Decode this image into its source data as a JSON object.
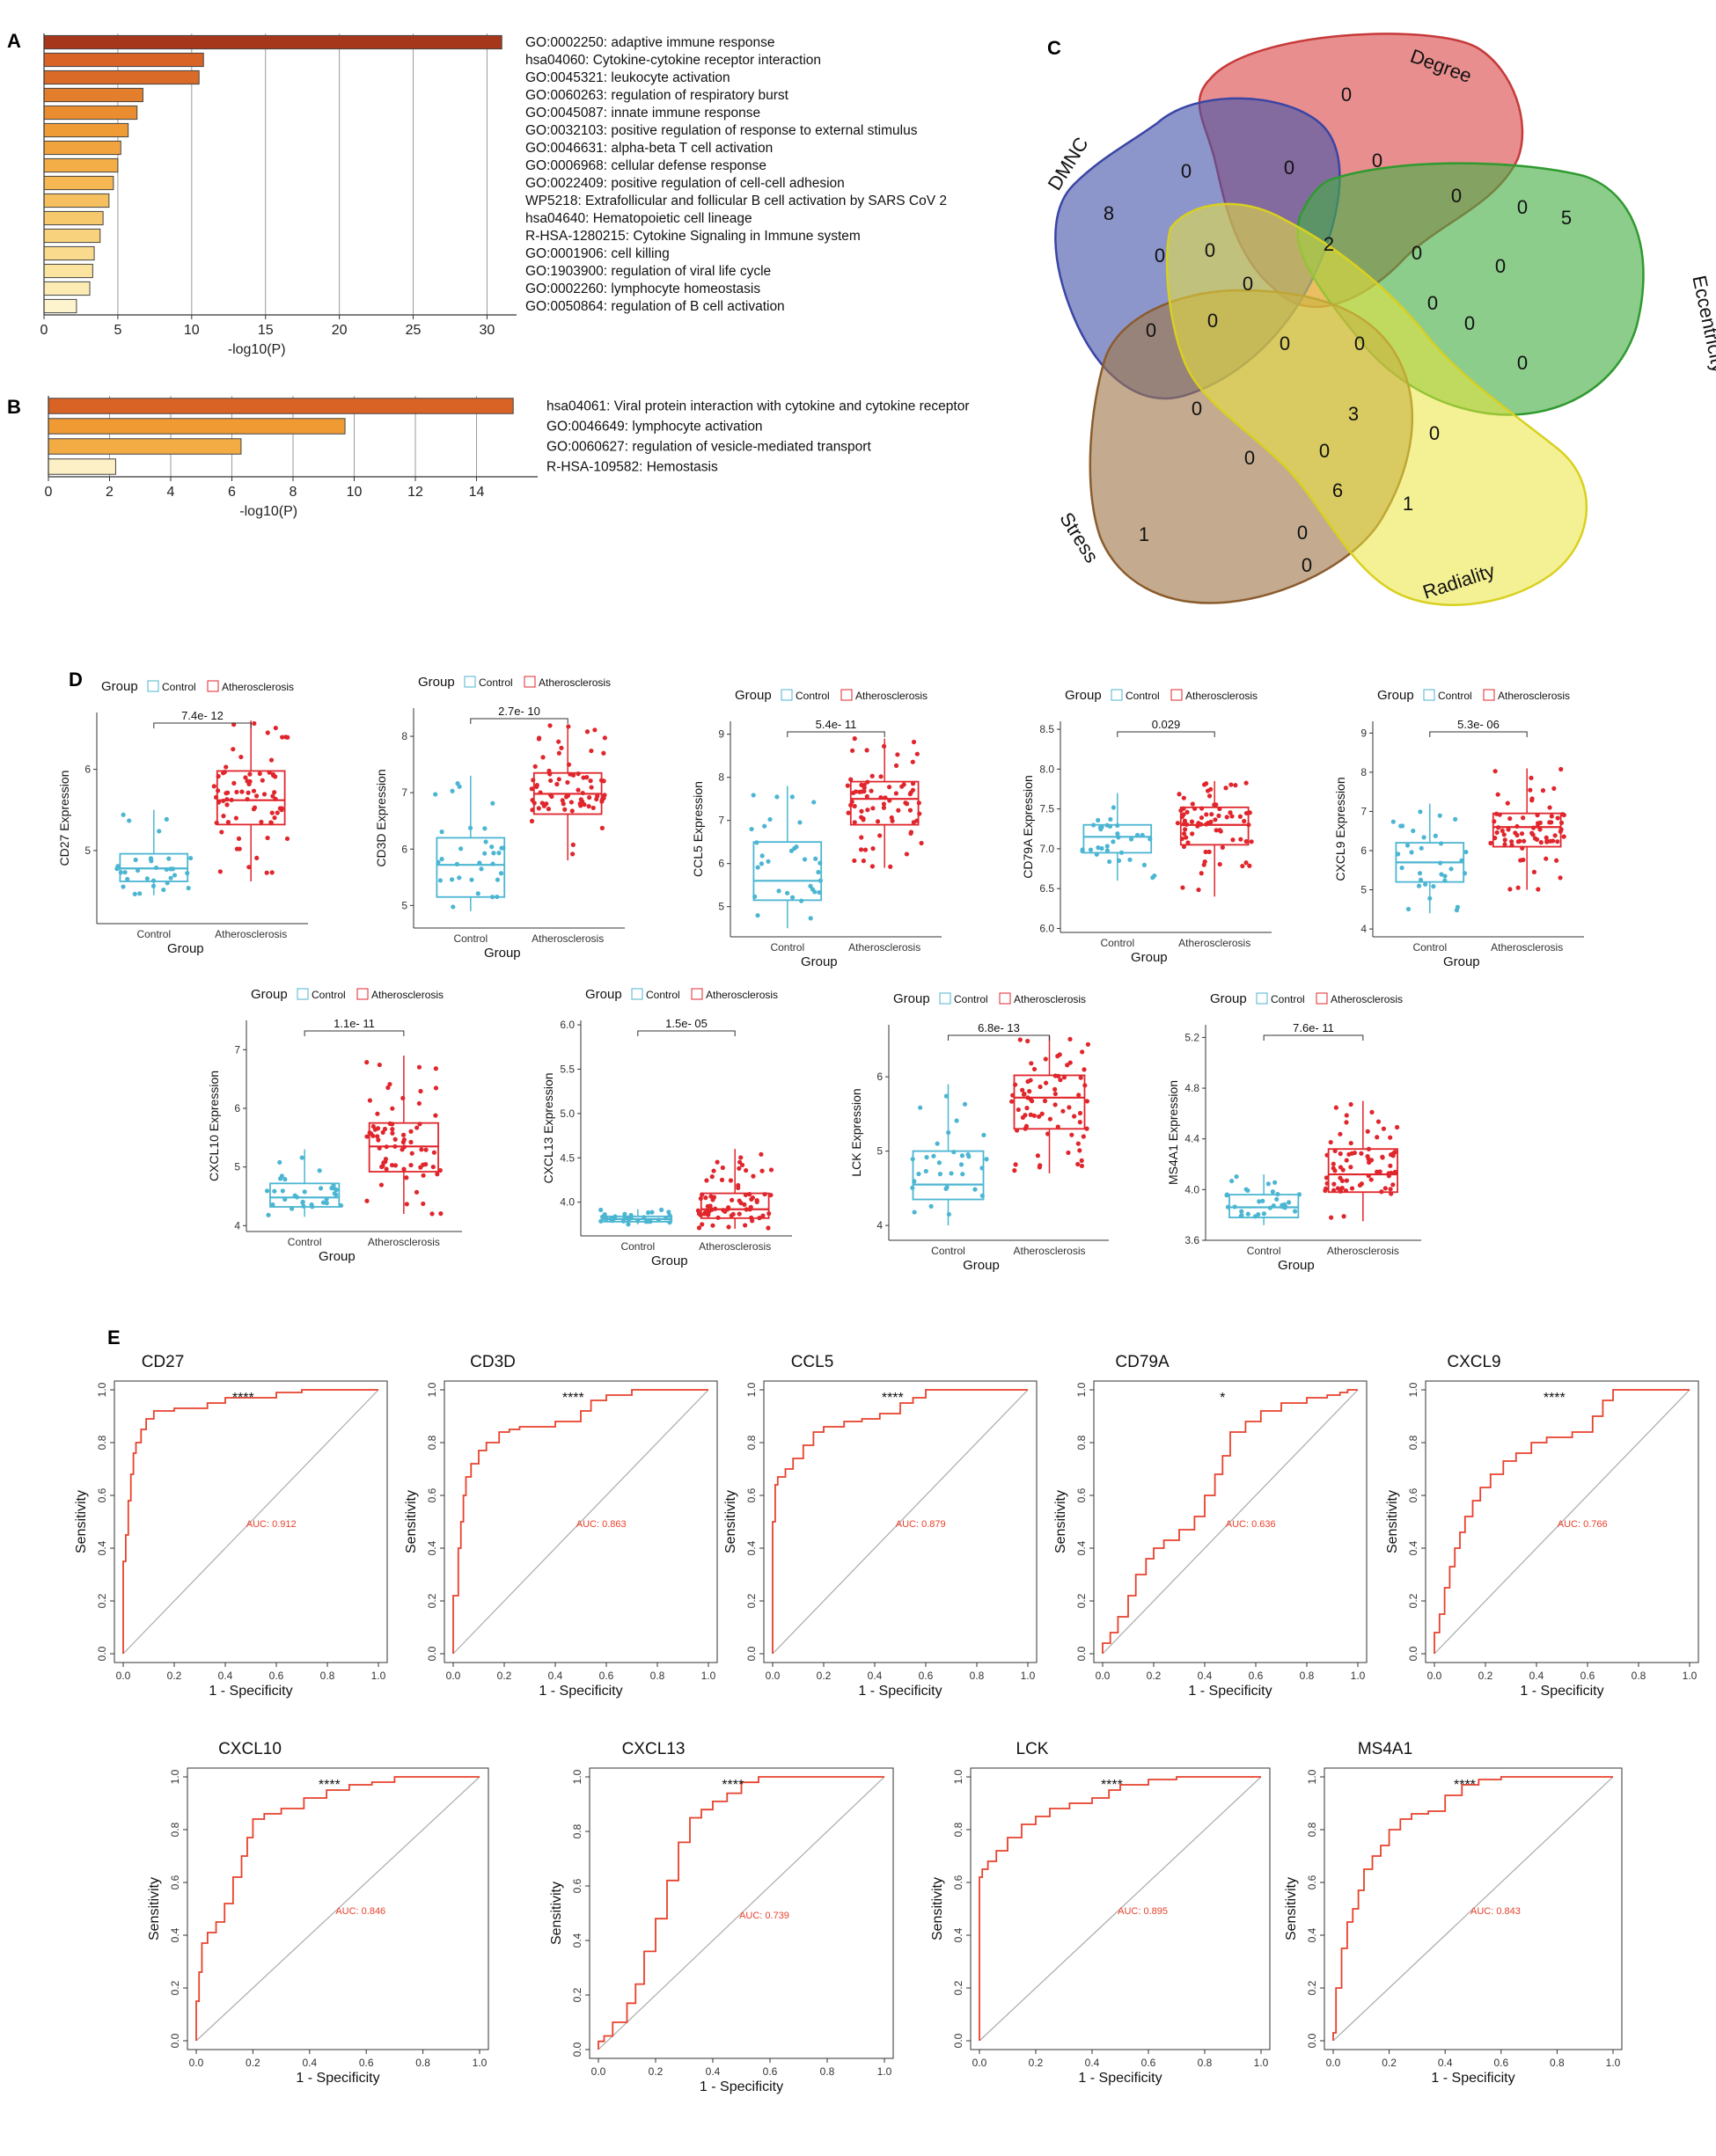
{
  "panel_letters": {
    "a": "A",
    "b": "B",
    "c": "C",
    "d": "D",
    "e": "E"
  },
  "chart_data": [
    {
      "id": "A",
      "type": "bar",
      "orientation": "horizontal",
      "xlabel": "-log10(P)",
      "xlim": [
        0,
        32
      ],
      "xticks": [
        0,
        5,
        10,
        15,
        20,
        25,
        30
      ],
      "xtick_labels": [
        "0",
        "5",
        "10",
        "15",
        "20",
        "25",
        "30"
      ],
      "grid": true,
      "categories": [
        "GO:0002250: adaptive immune response",
        "hsa04060: Cytokine-cytokine receptor interaction",
        "GO:0045321: leukocyte activation",
        "GO:0060263: regulation of respiratory burst",
        "GO:0045087: innate immune response",
        "GO:0032103: positive regulation of response to external stimulus",
        "GO:0046631: alpha-beta T cell activation",
        "GO:0006968: cellular defense response",
        "GO:0022409: positive regulation of cell-cell adhesion",
        "WP5218: Extrafollicular and follicular B cell activation by SARS CoV 2",
        "hsa04640: Hematopoietic cell lineage",
        "R-HSA-1280215: Cytokine Signaling in Immune system",
        "GO:0001906: cell killing",
        "GO:1903900: regulation of viral life cycle",
        "GO:0002260: lymphocyte homeostasis",
        "GO:0050864: regulation of B cell activation"
      ],
      "values": [
        31.0,
        10.8,
        10.5,
        6.7,
        6.3,
        5.7,
        5.2,
        5.0,
        4.7,
        4.4,
        4.0,
        3.8,
        3.4,
        3.3,
        3.1,
        2.2
      ],
      "colors": [
        "#a7371a",
        "#d86325",
        "#d96a28",
        "#e37f2c",
        "#ea8d31",
        "#ef9c37",
        "#f1a43e",
        "#f3ae47",
        "#f4b753",
        "#f6c060",
        "#f7c96d",
        "#f8d27c",
        "#fadb8d",
        "#fbe3a0",
        "#fcecb4",
        "#fdf3cc"
      ]
    },
    {
      "id": "B",
      "type": "bar",
      "orientation": "horizontal",
      "xlabel": "-log10(P)",
      "xlim": [
        0,
        16
      ],
      "xticks": [
        0,
        2,
        4,
        6,
        8,
        10,
        12,
        14
      ],
      "xtick_labels": [
        "0",
        "2",
        "4",
        "6",
        "8",
        "10",
        "12",
        "14"
      ],
      "grid": true,
      "categories": [
        "hsa04061: Viral protein interaction with cytokine and cytokine receptor",
        "GO:0046649: lymphocyte activation",
        "GO:0060627: regulation of vesicle-mediated transport",
        "R-HSA-109582: Hemostasis"
      ],
      "values": [
        15.2,
        9.7,
        6.3,
        2.2
      ],
      "colors": [
        "#d86325",
        "#f09a33",
        "#f3ac44",
        "#fdf0c6"
      ]
    },
    {
      "id": "C",
      "type": "venn",
      "sets": [
        "Degree",
        "DMNC",
        "Eccentricity",
        "Stress",
        "Radiality"
      ],
      "region_counts": [
        0,
        8,
        5,
        1,
        0,
        0,
        0,
        0,
        0,
        0,
        0,
        0,
        0,
        2,
        0,
        0,
        0,
        0,
        0,
        0,
        0,
        0,
        0,
        3,
        0,
        0,
        0,
        0,
        6,
        1,
        0
      ]
    },
    {
      "id": "D",
      "type": "box",
      "legend_title": "Group",
      "legend_entries": [
        "Control",
        "Atherosclerosis"
      ],
      "categories": [
        "Control",
        "Atherosclerosis"
      ],
      "xlabel": "Group",
      "series_colors": {
        "control": "#4cb6d2",
        "athero": "#e0262c"
      },
      "plots": [
        {
          "gene": "CD27",
          "ylabel": "CD27 Expression",
          "ylim": [
            4.1,
            6.7
          ],
          "yticks": [
            5,
            6
          ],
          "ytick_labels": [
            "5",
            "6"
          ],
          "p_value": "7.4e- 12",
          "control": {
            "min": 4.45,
            "q1": 4.62,
            "median": 4.78,
            "q3": 4.96,
            "max": 5.5
          },
          "athero": {
            "min": 4.62,
            "q1": 5.32,
            "median": 5.62,
            "q3": 5.98,
            "max": 6.6
          }
        },
        {
          "gene": "CD3D",
          "ylabel": "CD3D Expression",
          "ylim": [
            4.6,
            8.5
          ],
          "yticks": [
            5,
            6,
            7,
            8
          ],
          "ytick_labels": [
            "5",
            "6",
            "7",
            "8"
          ],
          "p_value": "2.7e- 10",
          "control": {
            "min": 4.9,
            "q1": 5.15,
            "median": 5.72,
            "q3": 6.2,
            "max": 7.3
          },
          "athero": {
            "min": 5.8,
            "q1": 6.62,
            "median": 6.98,
            "q3": 7.35,
            "max": 8.2
          }
        },
        {
          "gene": "CCL5",
          "ylabel": "CCL5 Expression",
          "ylim": [
            4.3,
            9.3
          ],
          "yticks": [
            5,
            6,
            7,
            8,
            9
          ],
          "ytick_labels": [
            "5",
            "6",
            "7",
            "8",
            "9"
          ],
          "p_value": "5.4e- 11",
          "control": {
            "min": 4.5,
            "q1": 5.15,
            "median": 5.6,
            "q3": 6.5,
            "max": 7.8
          },
          "athero": {
            "min": 5.9,
            "q1": 6.9,
            "median": 7.5,
            "q3": 7.9,
            "max": 8.9
          }
        },
        {
          "gene": "CD79A",
          "ylabel": "CD79A Expression",
          "ylim": [
            5.95,
            8.6
          ],
          "yticks": [
            6.0,
            6.5,
            7.0,
            7.5,
            8.0,
            8.5
          ],
          "ytick_labels": [
            "6.0",
            "6.5",
            "7.0",
            "7.5",
            "8.0",
            "8.5"
          ],
          "p_value": "0.029",
          "control": {
            "min": 6.6,
            "q1": 6.95,
            "median": 7.15,
            "q3": 7.3,
            "max": 7.7
          },
          "athero": {
            "min": 6.4,
            "q1": 7.05,
            "median": 7.3,
            "q3": 7.52,
            "max": 7.85
          }
        },
        {
          "gene": "CXCL9",
          "ylabel": "CXCL9 Expression",
          "ylim": [
            3.8,
            9.3
          ],
          "yticks": [
            4,
            5,
            6,
            7,
            8,
            9
          ],
          "ytick_labels": [
            "4",
            "5",
            "6",
            "7",
            "8",
            "9"
          ],
          "p_value": "5.3e- 06",
          "control": {
            "min": 4.4,
            "q1": 5.2,
            "median": 5.7,
            "q3": 6.2,
            "max": 7.2
          },
          "athero": {
            "min": 5.0,
            "q1": 6.1,
            "median": 6.6,
            "q3": 6.95,
            "max": 8.1
          }
        },
        {
          "gene": "CXCL10",
          "ylabel": "CXCL10 Expression",
          "ylim": [
            3.9,
            7.5
          ],
          "yticks": [
            4,
            5,
            6,
            7
          ],
          "ytick_labels": [
            "4",
            "5",
            "6",
            "7"
          ],
          "p_value": "1.1e- 11",
          "control": {
            "min": 4.15,
            "q1": 4.32,
            "median": 4.48,
            "q3": 4.72,
            "max": 5.3
          },
          "athero": {
            "min": 4.2,
            "q1": 4.92,
            "median": 5.35,
            "q3": 5.75,
            "max": 6.9
          }
        },
        {
          "gene": "CXCL13",
          "ylabel": "CXCL13 Expression",
          "ylim": [
            3.62,
            6.05
          ],
          "yticks": [
            4.0,
            4.5,
            5.0,
            5.5,
            6.0
          ],
          "ytick_labels": [
            "4.0",
            "4.5",
            "5.0",
            "5.5",
            "6.0"
          ],
          "p_value": "1.5e- 05",
          "control": {
            "min": 3.75,
            "q1": 3.78,
            "median": 3.81,
            "q3": 3.84,
            "max": 3.92
          },
          "athero": {
            "min": 3.7,
            "q1": 3.82,
            "median": 3.92,
            "q3": 4.1,
            "max": 4.6
          }
        },
        {
          "gene": "LCK",
          "ylabel": "LCK Expression",
          "ylim": [
            3.8,
            6.7
          ],
          "yticks": [
            4,
            5,
            6
          ],
          "ytick_labels": [
            "4",
            "5",
            "6"
          ],
          "p_value": "6.8e- 13",
          "control": {
            "min": 4.0,
            "q1": 4.35,
            "median": 4.55,
            "q3": 5.0,
            "max": 5.9
          },
          "athero": {
            "min": 4.7,
            "q1": 5.3,
            "median": 5.72,
            "q3": 6.02,
            "max": 6.55
          }
        },
        {
          "gene": "MS4A1",
          "ylabel": "MS4A1 Expression",
          "ylim": [
            3.6,
            5.3
          ],
          "yticks": [
            3.6,
            4.0,
            4.4,
            4.8,
            5.2
          ],
          "ytick_labels": [
            "3.6",
            "4.0",
            "4.4",
            "4.8",
            "5.2"
          ],
          "p_value": "7.6e- 11",
          "control": {
            "min": 3.72,
            "q1": 3.78,
            "median": 3.86,
            "q3": 3.96,
            "max": 4.12
          },
          "athero": {
            "min": 3.75,
            "q1": 3.98,
            "median": 4.12,
            "q3": 4.32,
            "max": 4.7
          }
        }
      ]
    },
    {
      "id": "E",
      "type": "line",
      "subtype": "roc",
      "xlabel": "1 -  Specificity",
      "ylabel": "Sensitivity",
      "xlim": [
        0,
        1
      ],
      "ylim": [
        0,
        1
      ],
      "ticks": [
        0.0,
        0.2,
        0.4,
        0.6,
        0.8,
        1.0
      ],
      "tick_labels": [
        "0.0",
        "0.2",
        "0.4",
        "0.6",
        "0.8",
        "1.0"
      ],
      "curve_color": "#e8412c",
      "plots": [
        {
          "title": "CD27",
          "auc_label": "AUC: 0.912",
          "significance": "****",
          "x": [
            0,
            0,
            0.01,
            0.02,
            0.03,
            0.04,
            0.05,
            0.07,
            0.09,
            0.12,
            0.15,
            0.2,
            0.28,
            0.33,
            0.4,
            0.5,
            0.6,
            0.7,
            0.8,
            0.9,
            1.0
          ],
          "y": [
            0,
            0.28,
            0.35,
            0.45,
            0.58,
            0.68,
            0.76,
            0.8,
            0.85,
            0.89,
            0.92,
            0.92,
            0.93,
            0.93,
            0.95,
            0.97,
            0.97,
            0.99,
            1.0,
            1.0,
            1.0
          ]
        },
        {
          "title": "CD3D",
          "auc_label": "AUC: 0.863",
          "significance": "****",
          "x": [
            0,
            0.02,
            0.03,
            0.04,
            0.05,
            0.07,
            0.1,
            0.13,
            0.18,
            0.22,
            0.26,
            0.32,
            0.4,
            0.5,
            0.54,
            0.6,
            0.7,
            0.8,
            0.9,
            1.0
          ],
          "y": [
            0,
            0.22,
            0.4,
            0.5,
            0.6,
            0.67,
            0.72,
            0.77,
            0.8,
            0.84,
            0.85,
            0.86,
            0.86,
            0.88,
            0.92,
            0.96,
            0.98,
            1.0,
            1.0,
            1.0
          ]
        },
        {
          "title": "CCL5",
          "auc_label": "AUC: 0.879",
          "significance": "****",
          "x": [
            0,
            0,
            0.01,
            0.02,
            0.05,
            0.08,
            0.12,
            0.16,
            0.2,
            0.28,
            0.35,
            0.42,
            0.5,
            0.55,
            0.6,
            0.7,
            0.8,
            0.9,
            1.0
          ],
          "y": [
            0,
            0.2,
            0.5,
            0.64,
            0.67,
            0.7,
            0.74,
            0.79,
            0.84,
            0.86,
            0.88,
            0.89,
            0.91,
            0.95,
            0.97,
            1.0,
            1.0,
            1.0,
            1.0
          ]
        },
        {
          "title": "CD79A",
          "auc_label": "AUC: 0.636",
          "significance": "*",
          "x": [
            0,
            0.03,
            0.06,
            0.1,
            0.13,
            0.17,
            0.2,
            0.24,
            0.3,
            0.36,
            0.4,
            0.44,
            0.47,
            0.5,
            0.56,
            0.62,
            0.7,
            0.8,
            0.88,
            0.93,
            0.96,
            1.0
          ],
          "y": [
            0,
            0.04,
            0.08,
            0.14,
            0.22,
            0.3,
            0.36,
            0.4,
            0.43,
            0.47,
            0.52,
            0.6,
            0.68,
            0.75,
            0.84,
            0.88,
            0.92,
            0.95,
            0.97,
            0.98,
            0.99,
            1.0
          ]
        },
        {
          "title": "CXCL9",
          "auc_label": "AUC: 0.766",
          "significance": "****",
          "x": [
            0,
            0.02,
            0.04,
            0.06,
            0.08,
            0.1,
            0.12,
            0.15,
            0.18,
            0.22,
            0.27,
            0.32,
            0.38,
            0.44,
            0.54,
            0.62,
            0.66,
            0.7,
            0.8,
            0.9,
            1.0
          ],
          "y": [
            0,
            0.08,
            0.15,
            0.25,
            0.33,
            0.4,
            0.46,
            0.52,
            0.58,
            0.63,
            0.68,
            0.73,
            0.76,
            0.8,
            0.82,
            0.84,
            0.9,
            0.96,
            1.0,
            1.0,
            1.0
          ]
        },
        {
          "title": "CXCL10",
          "auc_label": "AUC: 0.846",
          "significance": "****",
          "x": [
            0,
            0.01,
            0.02,
            0.04,
            0.07,
            0.1,
            0.13,
            0.16,
            0.18,
            0.2,
            0.24,
            0.3,
            0.38,
            0.46,
            0.54,
            0.62,
            0.7,
            0.8,
            0.9,
            1.0
          ],
          "y": [
            0,
            0.15,
            0.26,
            0.37,
            0.41,
            0.45,
            0.52,
            0.62,
            0.7,
            0.77,
            0.84,
            0.86,
            0.88,
            0.92,
            0.95,
            0.97,
            0.98,
            1.0,
            1.0,
            1.0
          ]
        },
        {
          "title": "CXCL13",
          "auc_label": "AUC: 0.739",
          "significance": "****",
          "x": [
            0,
            0.02,
            0.05,
            0.1,
            0.13,
            0.16,
            0.2,
            0.24,
            0.28,
            0.32,
            0.36,
            0.4,
            0.45,
            0.5,
            0.56,
            0.62,
            0.7,
            0.8,
            0.9,
            1.0
          ],
          "y": [
            0,
            0.03,
            0.05,
            0.1,
            0.17,
            0.24,
            0.36,
            0.48,
            0.62,
            0.76,
            0.85,
            0.88,
            0.91,
            0.94,
            0.98,
            1.0,
            1.0,
            1.0,
            1.0,
            1.0
          ]
        },
        {
          "title": "LCK",
          "auc_label": "AUC: 0.895",
          "significance": "****",
          "x": [
            0,
            0,
            0.01,
            0.03,
            0.06,
            0.1,
            0.15,
            0.2,
            0.25,
            0.32,
            0.4,
            0.46,
            0.5,
            0.6,
            0.7,
            0.8,
            0.9,
            1.0
          ],
          "y": [
            0,
            0.38,
            0.62,
            0.65,
            0.68,
            0.72,
            0.77,
            0.82,
            0.85,
            0.88,
            0.9,
            0.92,
            0.95,
            0.97,
            0.99,
            1.0,
            1.0,
            1.0
          ]
        },
        {
          "title": "MS4A1",
          "auc_label": "AUC: 0.843",
          "significance": "****",
          "x": [
            0,
            0.01,
            0.03,
            0.05,
            0.07,
            0.09,
            0.11,
            0.14,
            0.17,
            0.2,
            0.24,
            0.28,
            0.34,
            0.4,
            0.46,
            0.52,
            0.6,
            0.7,
            0.8,
            0.9,
            1.0
          ],
          "y": [
            0,
            0.03,
            0.2,
            0.35,
            0.45,
            0.5,
            0.57,
            0.65,
            0.7,
            0.74,
            0.8,
            0.84,
            0.86,
            0.87,
            0.93,
            0.97,
            0.99,
            1.0,
            1.0,
            1.0,
            1.0
          ]
        }
      ]
    }
  ]
}
